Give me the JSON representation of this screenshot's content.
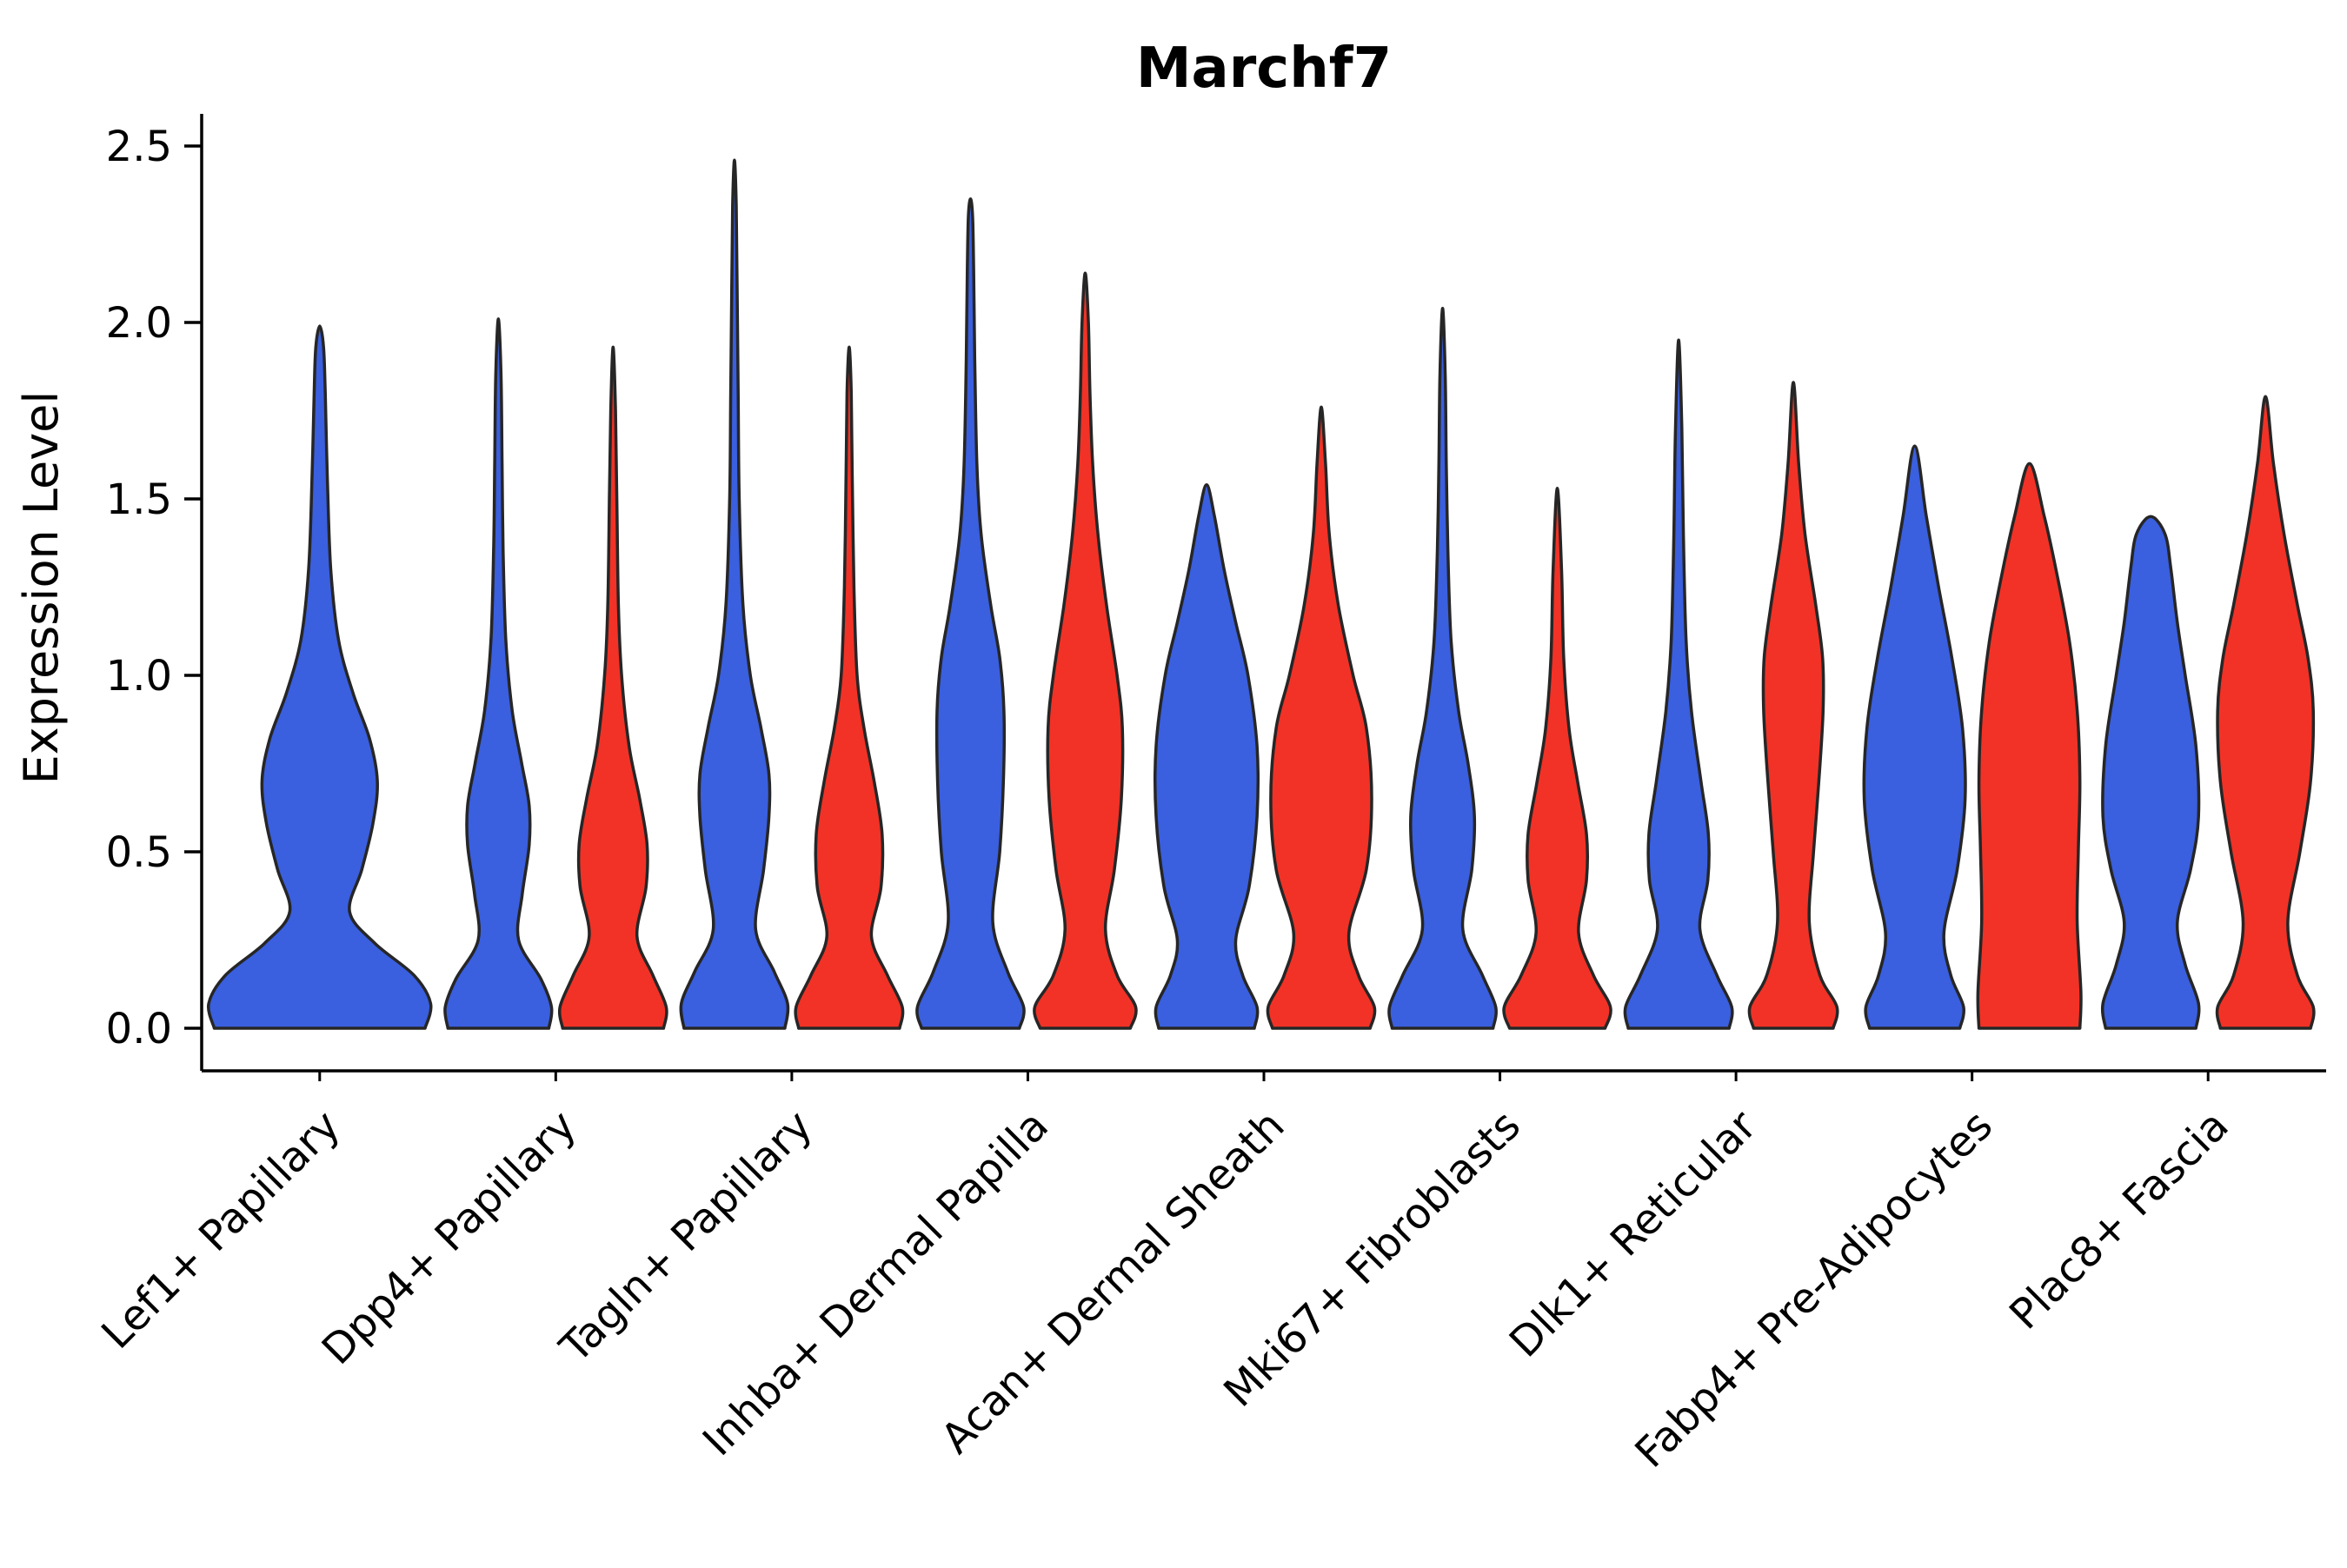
{
  "figure": {
    "background": "#ffffff"
  },
  "chart_data": {
    "type": "violin",
    "title": "Marchf7",
    "xlabel": "",
    "ylabel": "Expression Level",
    "ylim": [
      0,
      2.5
    ],
    "ytick_labels": [
      "0.0",
      "0.5",
      "1.0",
      "1.5",
      "2.0",
      "2.5"
    ],
    "grid": false,
    "legend_position": "none",
    "x_tick_rotation_deg": 45,
    "categories": [
      "Lef1+ Papillary",
      "Dpp4+ Papillary",
      "Tagln+ Papillary",
      "Inhba+ Dermal Papilla",
      "Acan+ Dermal Sheath",
      "Mki67+ Fibroblasts",
      "Dlk1+ Reticular",
      "Fabp4+ Pre-Adipocytes",
      "Plac8+ Fascia"
    ],
    "groups": [
      "blue",
      "red"
    ],
    "colors": {
      "blue": "#3A5FDF",
      "red": "#F23226"
    },
    "edge_color": "#262626",
    "axis_color": "#000000",
    "violins": [
      {
        "category_index": 0,
        "category": "Lef1+ Papillary",
        "group": "blue",
        "position": "center",
        "max_expression": 1.99,
        "profile": [
          [
            0,
            0.95
          ],
          [
            0.07,
            1.0
          ],
          [
            0.15,
            0.85
          ],
          [
            0.24,
            0.5
          ],
          [
            0.33,
            0.27
          ],
          [
            0.45,
            0.38
          ],
          [
            0.58,
            0.48
          ],
          [
            0.7,
            0.52
          ],
          [
            0.82,
            0.45
          ],
          [
            0.95,
            0.3
          ],
          [
            1.1,
            0.17
          ],
          [
            1.3,
            0.1
          ],
          [
            1.55,
            0.07
          ],
          [
            1.8,
            0.05
          ],
          [
            1.93,
            0.035
          ],
          [
            1.99,
            0
          ]
        ]
      },
      {
        "category_index": 1,
        "category": "Dpp4+ Papillary",
        "group": "blue",
        "position": "left",
        "max_expression": 2.01,
        "profile": [
          [
            0,
            0.95
          ],
          [
            0.06,
            1.0
          ],
          [
            0.14,
            0.8
          ],
          [
            0.25,
            0.38
          ],
          [
            0.38,
            0.45
          ],
          [
            0.52,
            0.58
          ],
          [
            0.63,
            0.58
          ],
          [
            0.75,
            0.44
          ],
          [
            0.9,
            0.26
          ],
          [
            1.1,
            0.14
          ],
          [
            1.35,
            0.09
          ],
          [
            1.6,
            0.07
          ],
          [
            1.85,
            0.05
          ],
          [
            2.01,
            0
          ]
        ]
      },
      {
        "category_index": 1,
        "category": "Dpp4+ Papillary",
        "group": "red",
        "position": "right",
        "max_expression": 1.93,
        "profile": [
          [
            0,
            0.95
          ],
          [
            0.06,
            1.0
          ],
          [
            0.15,
            0.75
          ],
          [
            0.26,
            0.45
          ],
          [
            0.4,
            0.62
          ],
          [
            0.52,
            0.64
          ],
          [
            0.65,
            0.5
          ],
          [
            0.8,
            0.3
          ],
          [
            1.0,
            0.16
          ],
          [
            1.2,
            0.1
          ],
          [
            1.5,
            0.07
          ],
          [
            1.75,
            0.045
          ],
          [
            1.93,
            0
          ]
        ]
      },
      {
        "category_index": 2,
        "category": "Tagln+ Papillary",
        "group": "blue",
        "position": "left",
        "max_expression": 2.46,
        "profile": [
          [
            0,
            0.95
          ],
          [
            0.07,
            1.0
          ],
          [
            0.16,
            0.75
          ],
          [
            0.28,
            0.4
          ],
          [
            0.45,
            0.55
          ],
          [
            0.6,
            0.65
          ],
          [
            0.72,
            0.65
          ],
          [
            0.85,
            0.5
          ],
          [
            1.0,
            0.3
          ],
          [
            1.2,
            0.16
          ],
          [
            1.5,
            0.09
          ],
          [
            1.8,
            0.07
          ],
          [
            2.1,
            0.05
          ],
          [
            2.33,
            0.035
          ],
          [
            2.46,
            0
          ]
        ]
      },
      {
        "category_index": 2,
        "category": "Tagln+ Papillary",
        "group": "red",
        "position": "right",
        "max_expression": 1.93,
        "profile": [
          [
            0,
            0.95
          ],
          [
            0.06,
            1.0
          ],
          [
            0.15,
            0.72
          ],
          [
            0.26,
            0.42
          ],
          [
            0.4,
            0.6
          ],
          [
            0.55,
            0.62
          ],
          [
            0.7,
            0.47
          ],
          [
            0.85,
            0.28
          ],
          [
            1.0,
            0.15
          ],
          [
            1.25,
            0.09
          ],
          [
            1.55,
            0.06
          ],
          [
            1.8,
            0.04
          ],
          [
            1.93,
            0
          ]
        ]
      },
      {
        "category_index": 3,
        "category": "Inhba+ Dermal Papilla",
        "group": "blue",
        "position": "left",
        "max_expression": 2.35,
        "profile": [
          [
            0,
            0.92
          ],
          [
            0.06,
            1.0
          ],
          [
            0.16,
            0.7
          ],
          [
            0.3,
            0.42
          ],
          [
            0.5,
            0.55
          ],
          [
            0.7,
            0.62
          ],
          [
            0.9,
            0.63
          ],
          [
            1.05,
            0.55
          ],
          [
            1.2,
            0.38
          ],
          [
            1.4,
            0.2
          ],
          [
            1.6,
            0.12
          ],
          [
            1.9,
            0.08
          ],
          [
            2.15,
            0.06
          ],
          [
            2.3,
            0.04
          ],
          [
            2.35,
            0
          ]
        ]
      },
      {
        "category_index": 3,
        "category": "Inhba+ Dermal Papilla",
        "group": "red",
        "position": "right",
        "max_expression": 2.14,
        "profile": [
          [
            0,
            0.85
          ],
          [
            0.06,
            0.95
          ],
          [
            0.15,
            0.6
          ],
          [
            0.28,
            0.38
          ],
          [
            0.45,
            0.55
          ],
          [
            0.65,
            0.68
          ],
          [
            0.85,
            0.7
          ],
          [
            1.0,
            0.6
          ],
          [
            1.2,
            0.4
          ],
          [
            1.4,
            0.24
          ],
          [
            1.6,
            0.14
          ],
          [
            1.8,
            0.09
          ],
          [
            2.0,
            0.06
          ],
          [
            2.14,
            0
          ]
        ]
      },
      {
        "category_index": 4,
        "category": "Acan+ Dermal Sheath",
        "group": "blue",
        "position": "left",
        "max_expression": 1.54,
        "profile": [
          [
            0,
            0.9
          ],
          [
            0.06,
            0.95
          ],
          [
            0.15,
            0.68
          ],
          [
            0.25,
            0.55
          ],
          [
            0.4,
            0.8
          ],
          [
            0.6,
            0.95
          ],
          [
            0.8,
            0.95
          ],
          [
            1.0,
            0.78
          ],
          [
            1.15,
            0.55
          ],
          [
            1.3,
            0.33
          ],
          [
            1.45,
            0.15
          ],
          [
            1.54,
            0
          ]
        ]
      },
      {
        "category_index": 4,
        "category": "Acan+ Dermal Sheath",
        "group": "red",
        "position": "right",
        "max_expression": 1.76,
        "profile": [
          [
            0,
            0.92
          ],
          [
            0.06,
            1.0
          ],
          [
            0.15,
            0.7
          ],
          [
            0.27,
            0.52
          ],
          [
            0.45,
            0.85
          ],
          [
            0.65,
            0.95
          ],
          [
            0.85,
            0.85
          ],
          [
            1.0,
            0.6
          ],
          [
            1.2,
            0.32
          ],
          [
            1.4,
            0.15
          ],
          [
            1.6,
            0.08
          ],
          [
            1.76,
            0
          ]
        ]
      },
      {
        "category_index": 5,
        "category": "Mki67+ Fibroblasts",
        "group": "blue",
        "position": "left",
        "max_expression": 2.04,
        "profile": [
          [
            0,
            0.95
          ],
          [
            0.06,
            1.0
          ],
          [
            0.15,
            0.75
          ],
          [
            0.28,
            0.38
          ],
          [
            0.45,
            0.55
          ],
          [
            0.6,
            0.6
          ],
          [
            0.75,
            0.48
          ],
          [
            0.9,
            0.3
          ],
          [
            1.1,
            0.16
          ],
          [
            1.35,
            0.1
          ],
          [
            1.6,
            0.07
          ],
          [
            1.85,
            0.05
          ],
          [
            2.04,
            0
          ]
        ]
      },
      {
        "category_index": 5,
        "category": "Mki67+ Fibroblasts",
        "group": "red",
        "position": "right",
        "max_expression": 1.53,
        "profile": [
          [
            0,
            0.9
          ],
          [
            0.06,
            1.0
          ],
          [
            0.15,
            0.68
          ],
          [
            0.27,
            0.4
          ],
          [
            0.42,
            0.55
          ],
          [
            0.55,
            0.55
          ],
          [
            0.7,
            0.38
          ],
          [
            0.85,
            0.22
          ],
          [
            1.05,
            0.12
          ],
          [
            1.3,
            0.08
          ],
          [
            1.53,
            0
          ]
        ]
      },
      {
        "category_index": 6,
        "category": "Dlk1+ Reticular",
        "group": "blue",
        "position": "left",
        "max_expression": 1.95,
        "profile": [
          [
            0,
            0.95
          ],
          [
            0.06,
            1.0
          ],
          [
            0.15,
            0.72
          ],
          [
            0.28,
            0.4
          ],
          [
            0.42,
            0.55
          ],
          [
            0.55,
            0.56
          ],
          [
            0.7,
            0.42
          ],
          [
            0.9,
            0.24
          ],
          [
            1.1,
            0.14
          ],
          [
            1.4,
            0.09
          ],
          [
            1.7,
            0.06
          ],
          [
            1.95,
            0
          ]
        ]
      },
      {
        "category_index": 6,
        "category": "Dlk1+ Reticular",
        "group": "red",
        "position": "right",
        "max_expression": 1.83,
        "profile": [
          [
            0,
            0.75
          ],
          [
            0.06,
            0.82
          ],
          [
            0.15,
            0.5
          ],
          [
            0.3,
            0.3
          ],
          [
            0.5,
            0.38
          ],
          [
            0.7,
            0.48
          ],
          [
            0.9,
            0.56
          ],
          [
            1.05,
            0.55
          ],
          [
            1.2,
            0.42
          ],
          [
            1.4,
            0.22
          ],
          [
            1.6,
            0.1
          ],
          [
            1.83,
            0
          ]
        ]
      },
      {
        "category_index": 7,
        "category": "Fabp4+ Pre-Adipocytes",
        "group": "blue",
        "position": "left",
        "max_expression": 1.65,
        "profile": [
          [
            0,
            0.85
          ],
          [
            0.06,
            0.92
          ],
          [
            0.15,
            0.68
          ],
          [
            0.27,
            0.55
          ],
          [
            0.45,
            0.8
          ],
          [
            0.65,
            0.95
          ],
          [
            0.85,
            0.9
          ],
          [
            1.05,
            0.7
          ],
          [
            1.25,
            0.45
          ],
          [
            1.45,
            0.22
          ],
          [
            1.65,
            0
          ]
        ]
      },
      {
        "category_index": 7,
        "category": "Fabp4+ Pre-Adipocytes",
        "group": "red",
        "position": "right",
        "max_expression": 1.6,
        "profile": [
          [
            0,
            0.95
          ],
          [
            0.1,
            0.97
          ],
          [
            0.3,
            0.9
          ],
          [
            0.5,
            0.92
          ],
          [
            0.7,
            0.95
          ],
          [
            0.9,
            0.9
          ],
          [
            1.1,
            0.75
          ],
          [
            1.3,
            0.5
          ],
          [
            1.45,
            0.28
          ],
          [
            1.6,
            0
          ]
        ]
      },
      {
        "category_index": 8,
        "category": "Plac8+ Fascia",
        "group": "blue",
        "position": "left",
        "max_expression": 1.45,
        "profile": [
          [
            0,
            0.85
          ],
          [
            0.07,
            0.9
          ],
          [
            0.18,
            0.65
          ],
          [
            0.3,
            0.5
          ],
          [
            0.45,
            0.75
          ],
          [
            0.6,
            0.9
          ],
          [
            0.8,
            0.85
          ],
          [
            1.0,
            0.65
          ],
          [
            1.15,
            0.5
          ],
          [
            1.3,
            0.38
          ],
          [
            1.4,
            0.27
          ],
          [
            1.45,
            0
          ]
        ]
      },
      {
        "category_index": 8,
        "category": "Plac8+ Fascia",
        "group": "red",
        "position": "right",
        "max_expression": 1.79,
        "profile": [
          [
            0,
            0.85
          ],
          [
            0.06,
            0.9
          ],
          [
            0.15,
            0.6
          ],
          [
            0.3,
            0.42
          ],
          [
            0.5,
            0.65
          ],
          [
            0.7,
            0.85
          ],
          [
            0.9,
            0.9
          ],
          [
            1.05,
            0.8
          ],
          [
            1.2,
            0.6
          ],
          [
            1.4,
            0.35
          ],
          [
            1.6,
            0.15
          ],
          [
            1.79,
            0
          ]
        ]
      }
    ]
  }
}
